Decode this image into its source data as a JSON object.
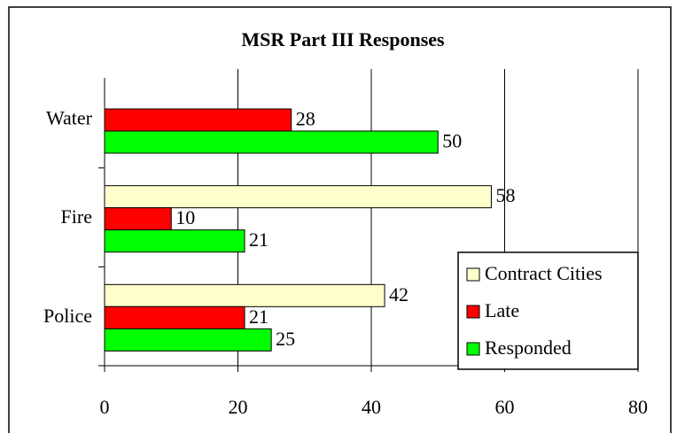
{
  "chart_data": {
    "type": "bar",
    "orientation": "horizontal",
    "title": "MSR Part III Responses",
    "categories": [
      "Water",
      "Fire",
      "Police"
    ],
    "series": [
      {
        "name": "Contract Cities",
        "color": "#ffffcc",
        "values": [
          null,
          58,
          42
        ]
      },
      {
        "name": "Late",
        "color": "#ff0000",
        "values": [
          28,
          10,
          21
        ]
      },
      {
        "name": "Responded",
        "color": "#00ff00",
        "values": [
          50,
          21,
          25
        ]
      }
    ],
    "xlim": [
      0,
      80
    ],
    "xticks": [
      0,
      20,
      40,
      60,
      80
    ],
    "grid": true,
    "legend": "lower right"
  }
}
